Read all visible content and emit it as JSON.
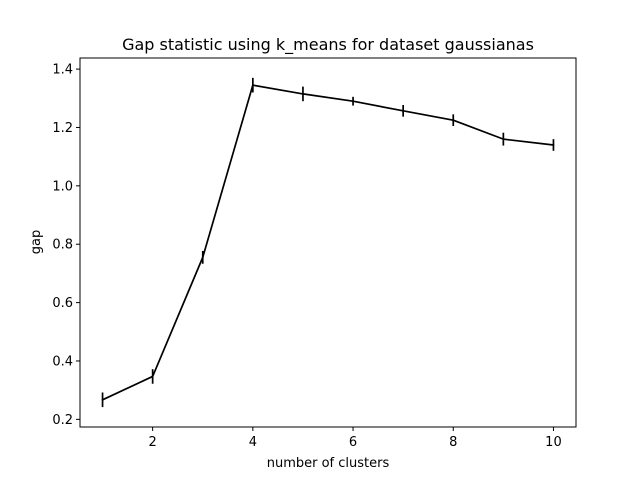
{
  "chart_data": {
    "type": "line",
    "title": "Gap statistic using k_means for dataset gaussianas",
    "xlabel": "number of clusters",
    "ylabel": "gap",
    "x": [
      1,
      2,
      3,
      4,
      5,
      6,
      7,
      8,
      9,
      10
    ],
    "series": [
      {
        "values": [
          0.267,
          0.347,
          0.755,
          1.345,
          1.315,
          1.29,
          1.257,
          1.225,
          1.16,
          1.14
        ],
        "error": [
          0.025,
          0.025,
          0.022,
          0.025,
          0.025,
          0.015,
          0.02,
          0.02,
          0.022,
          0.02
        ],
        "color": "#000000"
      }
    ],
    "xlim": [
      0.55,
      10.45
    ],
    "ylim": [
      0.1738,
      1.438
    ],
    "xticks": [
      2,
      4,
      6,
      8,
      10
    ],
    "yticks": [
      0.2,
      0.4,
      0.6,
      0.8,
      1.0,
      1.2,
      1.4
    ],
    "xtick_labels": [
      "2",
      "4",
      "6",
      "8",
      "10"
    ],
    "ytick_labels": [
      "0.2",
      "0.4",
      "0.6",
      "0.8",
      "1.0",
      "1.2",
      "1.4"
    ],
    "grid": false,
    "legend": "none"
  }
}
